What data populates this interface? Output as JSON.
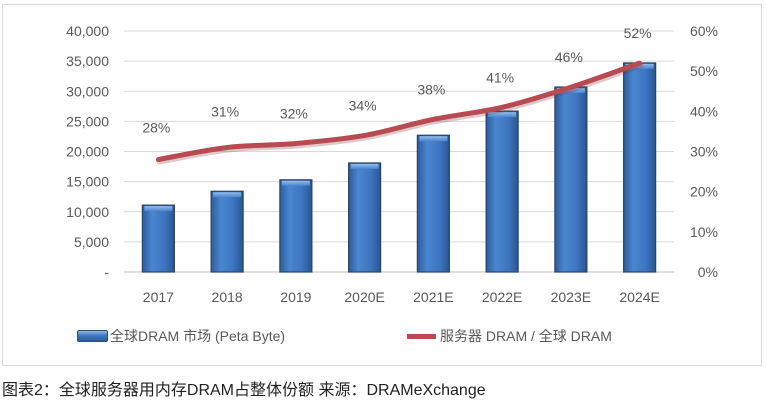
{
  "chart_data": {
    "type": "bar",
    "title": "",
    "categories": [
      "2017",
      "2018",
      "2019",
      "2020E",
      "2021E",
      "2022E",
      "2023E",
      "2024E"
    ],
    "series": [
      {
        "name": "全球DRAM 市场 (Peta Byte)",
        "type": "bar",
        "axis": "left",
        "color": "#3d74bf",
        "values": [
          11100,
          13400,
          15300,
          18100,
          22700,
          26700,
          30700,
          34700
        ]
      },
      {
        "name": "服务器 DRAM / 全球 DRAM",
        "type": "line",
        "axis": "right",
        "color": "#b84a52",
        "values": [
          28,
          31,
          32,
          34,
          38,
          41,
          46,
          52
        ],
        "data_labels": [
          "28%",
          "31%",
          "32%",
          "34%",
          "38%",
          "41%",
          "46%",
          "52%"
        ]
      }
    ],
    "y_left": {
      "ylim": [
        0,
        40000
      ],
      "ticks": [
        0,
        5000,
        10000,
        15000,
        20000,
        25000,
        30000,
        35000,
        40000
      ],
      "tick_labels": [
        "-",
        "5,000",
        "10,000",
        "15,000",
        "20,000",
        "25,000",
        "30,000",
        "35,000",
        "40,000"
      ]
    },
    "y_right": {
      "ylim": [
        0,
        60
      ],
      "ticks": [
        0,
        10,
        20,
        30,
        40,
        50,
        60
      ],
      "tick_labels": [
        "0%",
        "10%",
        "20%",
        "30%",
        "40%",
        "50%",
        "60%"
      ]
    },
    "xlabel": "",
    "ylabel": "",
    "grid": true,
    "legend_position": "bottom"
  },
  "legend": {
    "bar_label": "全球DRAM 市场 (Peta Byte)",
    "line_label": "服务器 DRAM / 全球 DRAM"
  },
  "caption": "图表2：全球服务器用内存DRAM占整体份额  来源：DRAMeXchange"
}
